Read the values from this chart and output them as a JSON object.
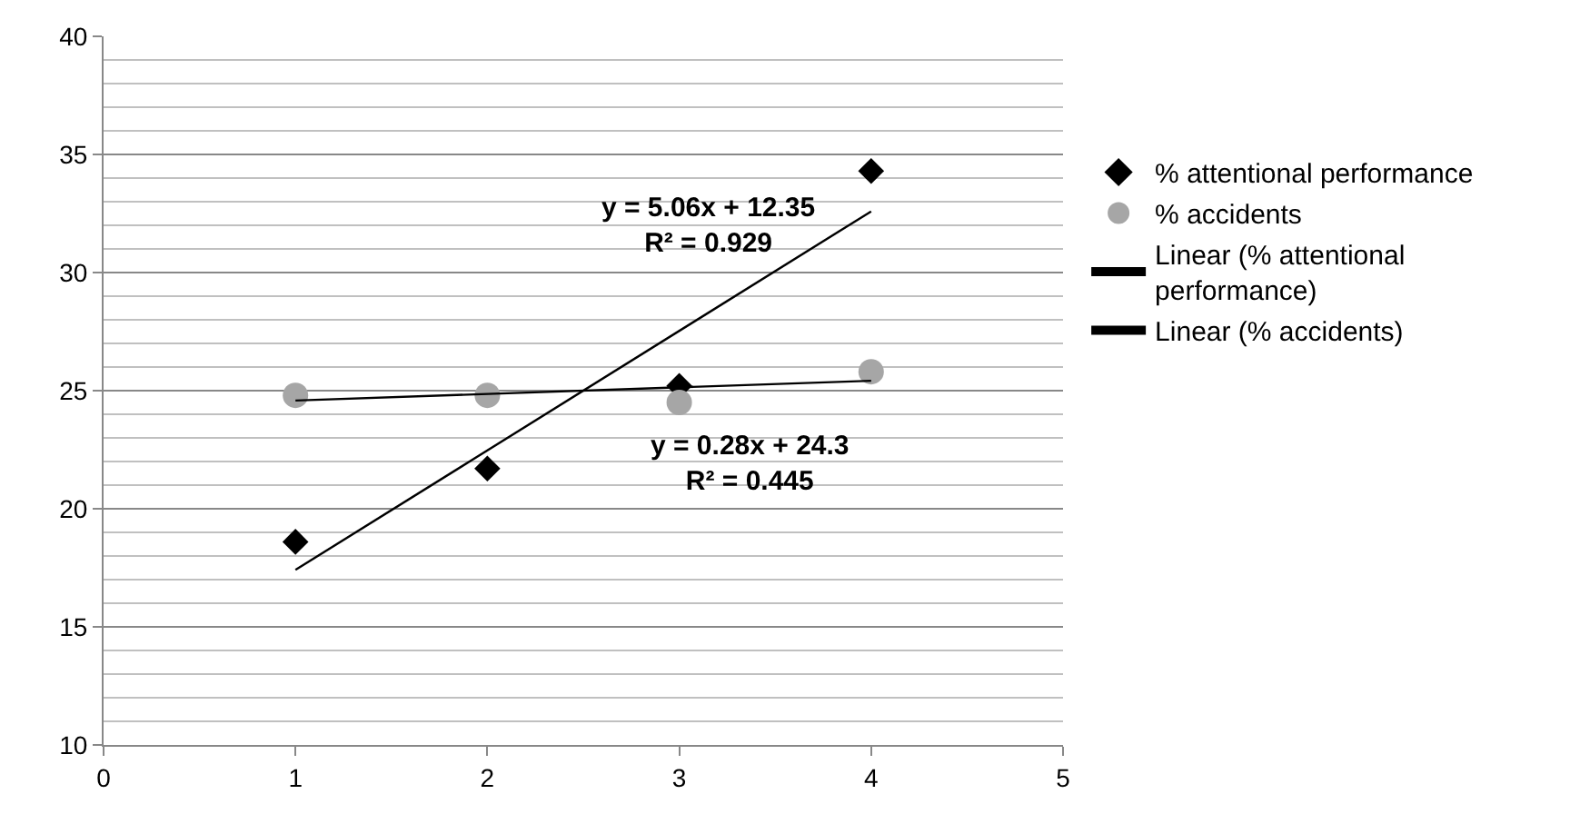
{
  "chart_data": {
    "type": "scatter",
    "xlim": [
      0,
      5
    ],
    "xticks": [
      0,
      1,
      2,
      3,
      4,
      5
    ],
    "ylim": [
      10,
      40
    ],
    "yticks": [
      10,
      15,
      20,
      25,
      30,
      35,
      40
    ],
    "grid": "y",
    "legend": "right",
    "series": [
      {
        "name": "% attentional performance",
        "color": "#000000",
        "marker": "diamond",
        "x": [
          1,
          2,
          3,
          4
        ],
        "values": [
          18.6,
          21.7,
          25.2,
          34.3
        ]
      },
      {
        "name": "% accidents",
        "color": "#a6a6a6",
        "marker": "circle",
        "x": [
          1,
          2,
          3,
          4
        ],
        "values": [
          24.8,
          24.8,
          24.5,
          25.8
        ]
      },
      {
        "name": "Linear (% attentional performance)",
        "type": "line",
        "color": "#000000",
        "marker": "none",
        "x": [
          1,
          4
        ],
        "values": [
          17.41,
          32.59
        ]
      },
      {
        "name": "Linear (% accidents)",
        "type": "line",
        "color": "#000000",
        "marker": "none",
        "x": [
          1,
          4
        ],
        "values": [
          24.58,
          25.42
        ]
      }
    ],
    "annotations": [
      "y = 5.06x + 12.35\nR² = 0.929",
      "y = 0.28x + 24.3\nR² = 0.445"
    ]
  }
}
